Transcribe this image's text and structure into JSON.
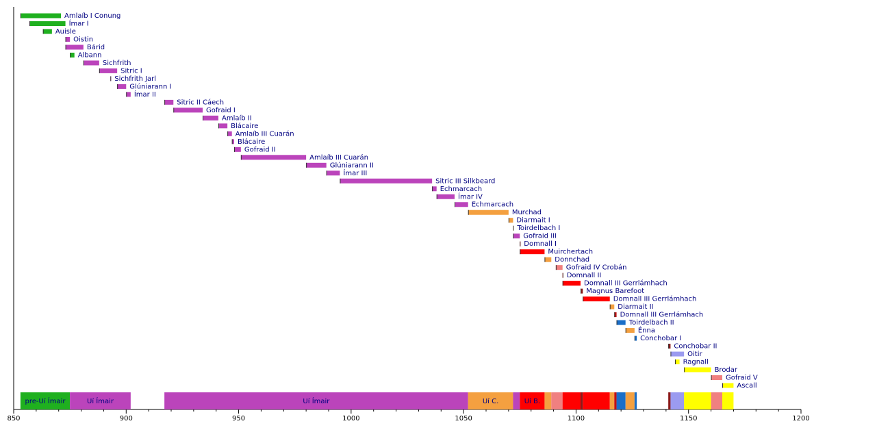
{
  "chart_data": {
    "type": "timeline",
    "xlim": [
      850,
      1200
    ],
    "xticks": [
      850,
      900,
      950,
      1000,
      1050,
      1100,
      1150,
      1200
    ],
    "xminorticks": [
      860,
      870,
      880,
      890,
      910,
      920,
      930,
      940,
      960,
      970,
      980,
      990,
      1010,
      1020,
      1030,
      1040,
      1060,
      1070,
      1080,
      1090,
      1110,
      1120,
      1130,
      1140,
      1160,
      1170,
      1180,
      1190
    ],
    "rulers": [
      {
        "name": "Amlaíb I Conung",
        "start": 853,
        "end": 871,
        "color": "#1fb01f"
      },
      {
        "name": "Ímar I",
        "start": 857,
        "end": 873,
        "color": "#1fb01f"
      },
      {
        "name": "Auisle",
        "start": 863,
        "end": 867,
        "color": "#1fb01f"
      },
      {
        "name": "Oistin",
        "start": 873,
        "end": 875,
        "color": "#bb44bb"
      },
      {
        "name": "Bárid",
        "start": 873,
        "end": 881,
        "color": "#bb44bb"
      },
      {
        "name": "Albann",
        "start": 875,
        "end": 877,
        "color": "#1fb01f"
      },
      {
        "name": "Sichfrith",
        "start": 881,
        "end": 888,
        "color": "#bb44bb"
      },
      {
        "name": "Sitric I",
        "start": 888,
        "end": 896,
        "color": "#bb44bb"
      },
      {
        "name": "Sichfrith Jarl",
        "start": 893,
        "end": 893,
        "color": "#bb44bb"
      },
      {
        "name": "Glúniarann I",
        "start": 896,
        "end": 900,
        "color": "#bb44bb"
      },
      {
        "name": "Ímar II",
        "start": 900,
        "end": 902,
        "color": "#bb44bb"
      },
      {
        "name": "Sitric II Cáech",
        "start": 917,
        "end": 921,
        "color": "#bb44bb"
      },
      {
        "name": "Gofraid I",
        "start": 921,
        "end": 934,
        "color": "#bb44bb"
      },
      {
        "name": "Amlaíb II",
        "start": 934,
        "end": 941,
        "color": "#bb44bb"
      },
      {
        "name": "Blácaire",
        "start": 941,
        "end": 945,
        "color": "#bb44bb"
      },
      {
        "name": "Amlaíb III Cuarán",
        "start": 945,
        "end": 947,
        "color": "#bb44bb"
      },
      {
        "name": "Blácaire",
        "start": 947,
        "end": 948,
        "color": "#bb44bb"
      },
      {
        "name": "Gofraid II",
        "start": 948,
        "end": 951,
        "color": "#bb44bb"
      },
      {
        "name": "Amlaíb III Cuarán",
        "start": 951,
        "end": 980,
        "color": "#bb44bb"
      },
      {
        "name": "Glúniarann II",
        "start": 980,
        "end": 989,
        "color": "#bb44bb"
      },
      {
        "name": "Ímar III",
        "start": 989,
        "end": 995,
        "color": "#bb44bb"
      },
      {
        "name": "Sitric III Silkbeard",
        "start": 995,
        "end": 1036,
        "color": "#bb44bb"
      },
      {
        "name": "Echmarcach",
        "start": 1036,
        "end": 1038,
        "color": "#bb44bb"
      },
      {
        "name": "Ímar IV",
        "start": 1038,
        "end": 1046,
        "color": "#bb44bb"
      },
      {
        "name": "Echmarcach",
        "start": 1046,
        "end": 1052,
        "color": "#bb44bb"
      },
      {
        "name": "Murchad",
        "start": 1052,
        "end": 1070,
        "color": "#f4a040"
      },
      {
        "name": "Diarmait I",
        "start": 1070,
        "end": 1072,
        "color": "#f4a040"
      },
      {
        "name": "Toirdelbach I",
        "start": 1072,
        "end": 1072,
        "color": "#f4a040"
      },
      {
        "name": "Gofraid III",
        "start": 1072,
        "end": 1075,
        "color": "#bb44bb"
      },
      {
        "name": "Domnall I",
        "start": 1075,
        "end": 1075,
        "color": "#ff0000"
      },
      {
        "name": "Muirchertach",
        "start": 1075,
        "end": 1086,
        "color": "#ff0000"
      },
      {
        "name": "Donnchad",
        "start": 1086,
        "end": 1089,
        "color": "#f4a040"
      },
      {
        "name": "Gofraid IV Crobán",
        "start": 1091,
        "end": 1094,
        "color": "#f08080"
      },
      {
        "name": "Domnall II",
        "start": 1094,
        "end": 1094,
        "color": "#ff0000"
      },
      {
        "name": "Domnall III Gerrlámhach",
        "start": 1094,
        "end": 1102,
        "color": "#ff0000"
      },
      {
        "name": "Magnus Barefoot",
        "start": 1102,
        "end": 1103,
        "color": "#8b1a1a"
      },
      {
        "name": "Domnall III Gerrlámhach",
        "start": 1103,
        "end": 1115,
        "color": "#ff0000"
      },
      {
        "name": "Diarmait II",
        "start": 1115,
        "end": 1117,
        "color": "#f4a040"
      },
      {
        "name": "Domnall III Gerrlámhach",
        "start": 1117,
        "end": 1118,
        "color": "#c01010"
      },
      {
        "name": "Toirdelbach II",
        "start": 1118,
        "end": 1122,
        "color": "#1a6ec8"
      },
      {
        "name": "Énna",
        "start": 1122,
        "end": 1126,
        "color": "#f4a040"
      },
      {
        "name": "Conchobar I",
        "start": 1126,
        "end": 1127,
        "color": "#1a6ec8"
      },
      {
        "name": "Conchobar II",
        "start": 1141,
        "end": 1142,
        "color": "#8b1a1a"
      },
      {
        "name": "Oitir",
        "start": 1142,
        "end": 1148,
        "color": "#9b9bf0"
      },
      {
        "name": "Ragnall",
        "start": 1144,
        "end": 1146,
        "color": "#ffff00"
      },
      {
        "name": "Brodar",
        "start": 1148,
        "end": 1160,
        "color": "#ffff00"
      },
      {
        "name": "Gofraid V",
        "start": 1160,
        "end": 1165,
        "color": "#f08080"
      },
      {
        "name": "Ascall",
        "start": 1165,
        "end": 1170,
        "color": "#ffff00"
      }
    ],
    "eras": [
      {
        "label": "pre-Uí Ímair",
        "start": 853,
        "end": 875,
        "color": "#1fb01f"
      },
      {
        "label": "Uí Ímair",
        "start": 875,
        "end": 902,
        "color": "#bb44bb"
      },
      {
        "label": "Uí Ímair",
        "start": 917,
        "end": 1052,
        "color": "#bb44bb"
      },
      {
        "label": "Uí C.",
        "start": 1052,
        "end": 1072,
        "color": "#f4a040"
      },
      {
        "start": 1072,
        "end": 1075,
        "color": "#bb44bb"
      },
      {
        "label": "Uí B.",
        "start": 1075,
        "end": 1086,
        "color": "#ff0000"
      },
      {
        "start": 1086,
        "end": 1089,
        "color": "#f4a040"
      },
      {
        "start": 1089,
        "end": 1094,
        "color": "#f08080"
      },
      {
        "start": 1094,
        "end": 1102,
        "color": "#ff0000"
      },
      {
        "start": 1102,
        "end": 1103,
        "color": "#8b1a1a"
      },
      {
        "start": 1103,
        "end": 1115,
        "color": "#ff0000"
      },
      {
        "start": 1115,
        "end": 1117,
        "color": "#f4a040"
      },
      {
        "start": 1117,
        "end": 1118,
        "color": "#c01010"
      },
      {
        "start": 1118,
        "end": 1122,
        "color": "#1a6ec8"
      },
      {
        "start": 1122,
        "end": 1126,
        "color": "#f4a040"
      },
      {
        "start": 1126,
        "end": 1127,
        "color": "#1a6ec8"
      },
      {
        "start": 1141,
        "end": 1142,
        "color": "#8b1a1a"
      },
      {
        "start": 1142,
        "end": 1148,
        "color": "#9b9bf0"
      },
      {
        "start": 1148,
        "end": 1160,
        "color": "#ffff00"
      },
      {
        "start": 1160,
        "end": 1165,
        "color": "#f08080"
      },
      {
        "start": 1165,
        "end": 1170,
        "color": "#ffff00"
      }
    ]
  }
}
